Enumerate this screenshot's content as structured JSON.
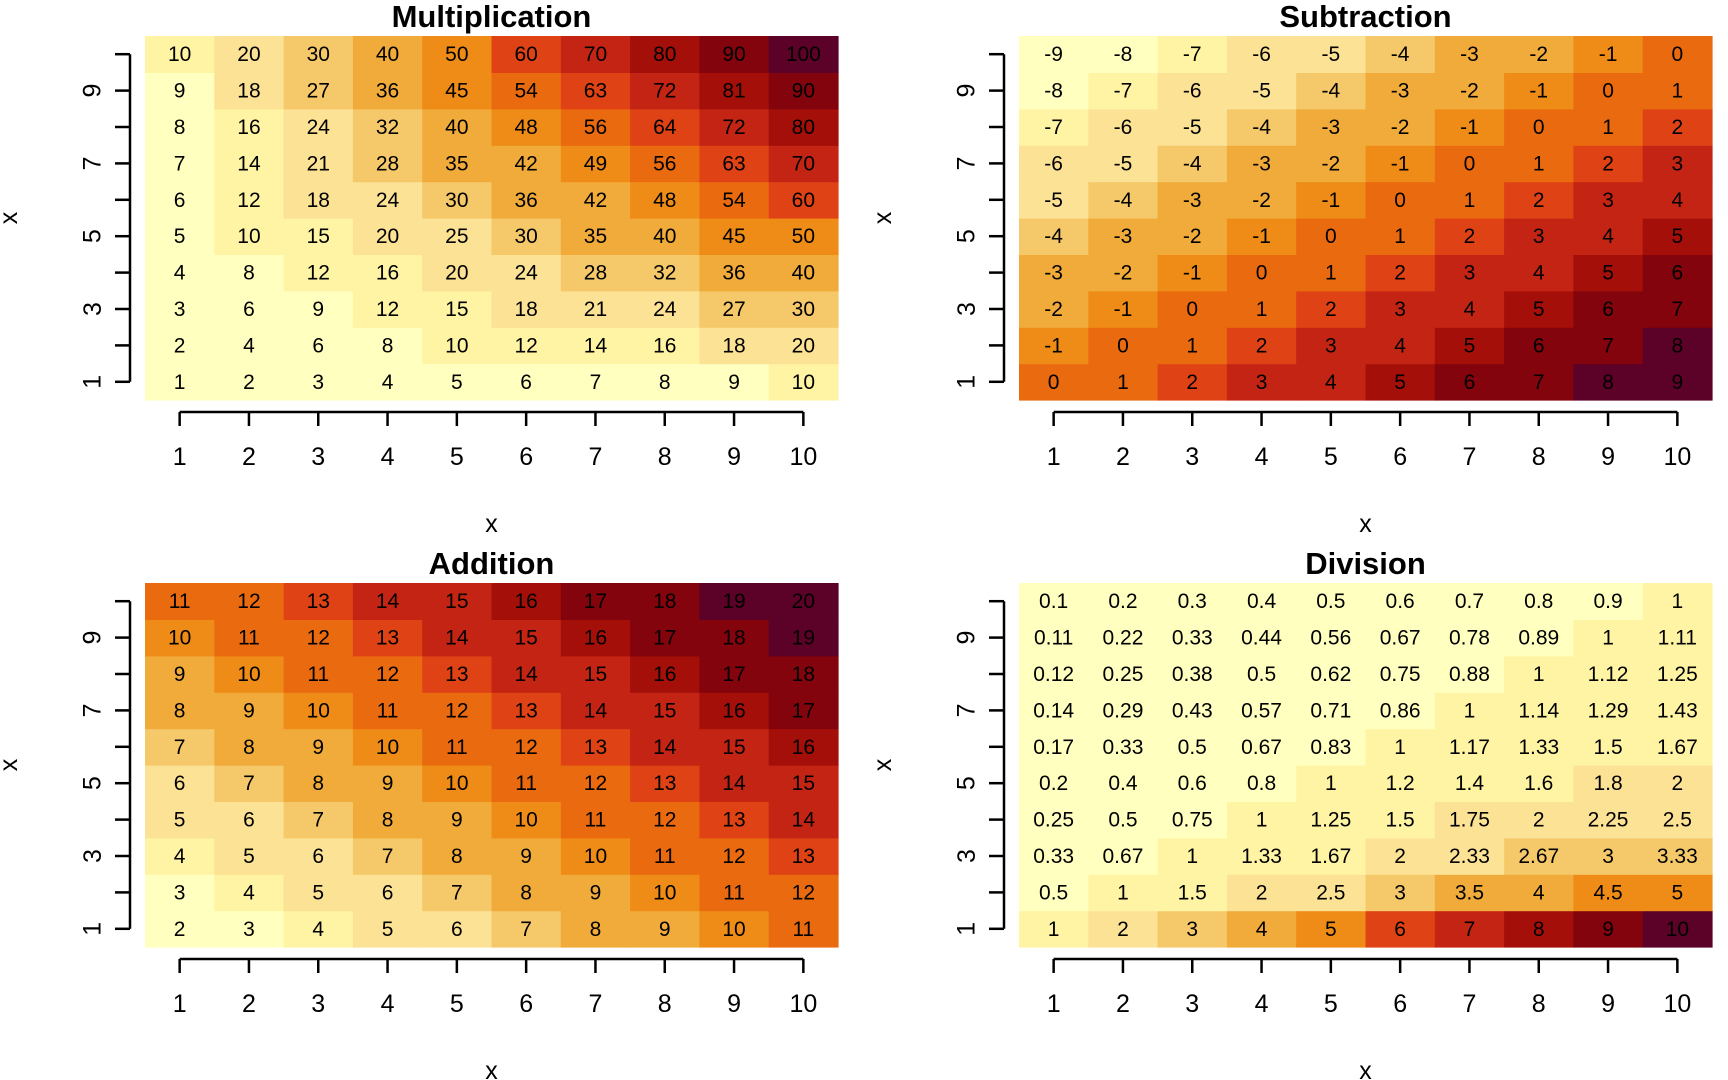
{
  "palette": [
    "#FFFFBF",
    "#FFF4A3",
    "#FCE294",
    "#F5C96A",
    "#F0AB3A",
    "#EE8C17",
    "#EA6A10",
    "#DF4214",
    "#C42413",
    "#A40F09",
    "#83040C",
    "#5C0127"
  ],
  "chart_data": [
    {
      "type": "heatmap",
      "title": "Multiplication",
      "xlabel": "x",
      "ylabel": "x",
      "x": [
        1,
        2,
        3,
        4,
        5,
        6,
        7,
        8,
        9,
        10
      ],
      "y": [
        1,
        2,
        3,
        4,
        5,
        6,
        7,
        8,
        9,
        10
      ],
      "x_ticks": [
        "1",
        "2",
        "3",
        "4",
        "5",
        "6",
        "7",
        "8",
        "9",
        "10"
      ],
      "y_ticks": [
        "1",
        "3",
        "5",
        "7",
        "9"
      ],
      "legend": "none",
      "grid": false,
      "color_scale": "heat (light yellow = low, dark red = high)",
      "labels": [
        [
          "1",
          "2",
          "3",
          "4",
          "5",
          "6",
          "7",
          "8",
          "9",
          "10"
        ],
        [
          "2",
          "4",
          "6",
          "8",
          "10",
          "12",
          "14",
          "16",
          "18",
          "20"
        ],
        [
          "3",
          "6",
          "9",
          "12",
          "15",
          "18",
          "21",
          "24",
          "27",
          "30"
        ],
        [
          "4",
          "8",
          "12",
          "16",
          "20",
          "24",
          "28",
          "32",
          "36",
          "40"
        ],
        [
          "5",
          "10",
          "15",
          "20",
          "25",
          "30",
          "35",
          "40",
          "45",
          "50"
        ],
        [
          "6",
          "12",
          "18",
          "24",
          "30",
          "36",
          "42",
          "48",
          "54",
          "60"
        ],
        [
          "7",
          "14",
          "21",
          "28",
          "35",
          "42",
          "49",
          "56",
          "63",
          "70"
        ],
        [
          "8",
          "16",
          "24",
          "32",
          "40",
          "48",
          "56",
          "64",
          "72",
          "80"
        ],
        [
          "9",
          "18",
          "27",
          "36",
          "45",
          "54",
          "63",
          "72",
          "81",
          "90"
        ],
        [
          "10",
          "20",
          "30",
          "40",
          "50",
          "60",
          "70",
          "80",
          "90",
          "100"
        ]
      ],
      "values": [
        [
          1,
          2,
          3,
          4,
          5,
          6,
          7,
          8,
          9,
          10
        ],
        [
          2,
          4,
          6,
          8,
          10,
          12,
          14,
          16,
          18,
          20
        ],
        [
          3,
          6,
          9,
          12,
          15,
          18,
          21,
          24,
          27,
          30
        ],
        [
          4,
          8,
          12,
          16,
          20,
          24,
          28,
          32,
          36,
          40
        ],
        [
          5,
          10,
          15,
          20,
          25,
          30,
          35,
          40,
          45,
          50
        ],
        [
          6,
          12,
          18,
          24,
          30,
          36,
          42,
          48,
          54,
          60
        ],
        [
          7,
          14,
          21,
          28,
          35,
          42,
          49,
          56,
          63,
          70
        ],
        [
          8,
          16,
          24,
          32,
          40,
          48,
          56,
          64,
          72,
          80
        ],
        [
          9,
          18,
          27,
          36,
          45,
          54,
          63,
          72,
          81,
          90
        ],
        [
          10,
          20,
          30,
          40,
          50,
          60,
          70,
          80,
          90,
          100
        ]
      ]
    },
    {
      "type": "heatmap",
      "title": "Subtraction",
      "xlabel": "x",
      "ylabel": "x",
      "x": [
        1,
        2,
        3,
        4,
        5,
        6,
        7,
        8,
        9,
        10
      ],
      "y": [
        1,
        2,
        3,
        4,
        5,
        6,
        7,
        8,
        9,
        10
      ],
      "x_ticks": [
        "1",
        "2",
        "3",
        "4",
        "5",
        "6",
        "7",
        "8",
        "9",
        "10"
      ],
      "y_ticks": [
        "1",
        "3",
        "5",
        "7",
        "9"
      ],
      "legend": "none",
      "grid": false,
      "color_scale": "heat (light yellow = low, dark red = high)",
      "labels": [
        [
          "0",
          "1",
          "2",
          "3",
          "4",
          "5",
          "6",
          "7",
          "8",
          "9"
        ],
        [
          "-1",
          "0",
          "1",
          "2",
          "3",
          "4",
          "5",
          "6",
          "7",
          "8"
        ],
        [
          "-2",
          "-1",
          "0",
          "1",
          "2",
          "3",
          "4",
          "5",
          "6",
          "7"
        ],
        [
          "-3",
          "-2",
          "-1",
          "0",
          "1",
          "2",
          "3",
          "4",
          "5",
          "6"
        ],
        [
          "-4",
          "-3",
          "-2",
          "-1",
          "0",
          "1",
          "2",
          "3",
          "4",
          "5"
        ],
        [
          "-5",
          "-4",
          "-3",
          "-2",
          "-1",
          "0",
          "1",
          "2",
          "3",
          "4"
        ],
        [
          "-6",
          "-5",
          "-4",
          "-3",
          "-2",
          "-1",
          "0",
          "1",
          "2",
          "3"
        ],
        [
          "-7",
          "-6",
          "-5",
          "-4",
          "-3",
          "-2",
          "-1",
          "0",
          "1",
          "2"
        ],
        [
          "-8",
          "-7",
          "-6",
          "-5",
          "-4",
          "-3",
          "-2",
          "-1",
          "0",
          "1"
        ],
        [
          "-9",
          "-8",
          "-7",
          "-6",
          "-5",
          "-4",
          "-3",
          "-2",
          "-1",
          "0"
        ]
      ],
      "values": [
        [
          0,
          1,
          2,
          3,
          4,
          5,
          6,
          7,
          8,
          9
        ],
        [
          -1,
          0,
          1,
          2,
          3,
          4,
          5,
          6,
          7,
          8
        ],
        [
          -2,
          -1,
          0,
          1,
          2,
          3,
          4,
          5,
          6,
          7
        ],
        [
          -3,
          -2,
          -1,
          0,
          1,
          2,
          3,
          4,
          5,
          6
        ],
        [
          -4,
          -3,
          -2,
          -1,
          0,
          1,
          2,
          3,
          4,
          5
        ],
        [
          -5,
          -4,
          -3,
          -2,
          -1,
          0,
          1,
          2,
          3,
          4
        ],
        [
          -6,
          -5,
          -4,
          -3,
          -2,
          -1,
          0,
          1,
          2,
          3
        ],
        [
          -7,
          -6,
          -5,
          -4,
          -3,
          -2,
          -1,
          0,
          1,
          2
        ],
        [
          -8,
          -7,
          -6,
          -5,
          -4,
          -3,
          -2,
          -1,
          0,
          1
        ],
        [
          -9,
          -8,
          -7,
          -6,
          -5,
          -4,
          -3,
          -2,
          -1,
          0
        ]
      ]
    },
    {
      "type": "heatmap",
      "title": "Addition",
      "xlabel": "x",
      "ylabel": "x",
      "x": [
        1,
        2,
        3,
        4,
        5,
        6,
        7,
        8,
        9,
        10
      ],
      "y": [
        1,
        2,
        3,
        4,
        5,
        6,
        7,
        8,
        9,
        10
      ],
      "x_ticks": [
        "1",
        "2",
        "3",
        "4",
        "5",
        "6",
        "7",
        "8",
        "9",
        "10"
      ],
      "y_ticks": [
        "1",
        "3",
        "5",
        "7",
        "9"
      ],
      "legend": "none",
      "grid": false,
      "color_scale": "heat (light yellow = low, dark red = high)",
      "labels": [
        [
          "2",
          "3",
          "4",
          "5",
          "6",
          "7",
          "8",
          "9",
          "10",
          "11"
        ],
        [
          "3",
          "4",
          "5",
          "6",
          "7",
          "8",
          "9",
          "10",
          "11",
          "12"
        ],
        [
          "4",
          "5",
          "6",
          "7",
          "8",
          "9",
          "10",
          "11",
          "12",
          "13"
        ],
        [
          "5",
          "6",
          "7",
          "8",
          "9",
          "10",
          "11",
          "12",
          "13",
          "14"
        ],
        [
          "6",
          "7",
          "8",
          "9",
          "10",
          "11",
          "12",
          "13",
          "14",
          "15"
        ],
        [
          "7",
          "8",
          "9",
          "10",
          "11",
          "12",
          "13",
          "14",
          "15",
          "16"
        ],
        [
          "8",
          "9",
          "10",
          "11",
          "12",
          "13",
          "14",
          "15",
          "16",
          "17"
        ],
        [
          "9",
          "10",
          "11",
          "12",
          "13",
          "14",
          "15",
          "16",
          "17",
          "18"
        ],
        [
          "10",
          "11",
          "12",
          "13",
          "14",
          "15",
          "16",
          "17",
          "18",
          "19"
        ],
        [
          "11",
          "12",
          "13",
          "14",
          "15",
          "16",
          "17",
          "18",
          "19",
          "20"
        ]
      ],
      "values": [
        [
          2,
          3,
          4,
          5,
          6,
          7,
          8,
          9,
          10,
          11
        ],
        [
          3,
          4,
          5,
          6,
          7,
          8,
          9,
          10,
          11,
          12
        ],
        [
          4,
          5,
          6,
          7,
          8,
          9,
          10,
          11,
          12,
          13
        ],
        [
          5,
          6,
          7,
          8,
          9,
          10,
          11,
          12,
          13,
          14
        ],
        [
          6,
          7,
          8,
          9,
          10,
          11,
          12,
          13,
          14,
          15
        ],
        [
          7,
          8,
          9,
          10,
          11,
          12,
          13,
          14,
          15,
          16
        ],
        [
          8,
          9,
          10,
          11,
          12,
          13,
          14,
          15,
          16,
          17
        ],
        [
          9,
          10,
          11,
          12,
          13,
          14,
          15,
          16,
          17,
          18
        ],
        [
          10,
          11,
          12,
          13,
          14,
          15,
          16,
          17,
          18,
          19
        ],
        [
          11,
          12,
          13,
          14,
          15,
          16,
          17,
          18,
          19,
          20
        ]
      ]
    },
    {
      "type": "heatmap",
      "title": "Division",
      "xlabel": "x",
      "ylabel": "x",
      "x": [
        1,
        2,
        3,
        4,
        5,
        6,
        7,
        8,
        9,
        10
      ],
      "y": [
        1,
        2,
        3,
        4,
        5,
        6,
        7,
        8,
        9,
        10
      ],
      "x_ticks": [
        "1",
        "2",
        "3",
        "4",
        "5",
        "6",
        "7",
        "8",
        "9",
        "10"
      ],
      "y_ticks": [
        "1",
        "3",
        "5",
        "7",
        "9"
      ],
      "legend": "none",
      "grid": false,
      "color_scale": "heat (light yellow = low, dark red = high)",
      "labels": [
        [
          "1",
          "2",
          "3",
          "4",
          "5",
          "6",
          "7",
          "8",
          "9",
          "10"
        ],
        [
          "0.5",
          "1",
          "1.5",
          "2",
          "2.5",
          "3",
          "3.5",
          "4",
          "4.5",
          "5"
        ],
        [
          "0.33",
          "0.67",
          "1",
          "1.33",
          "1.67",
          "2",
          "2.33",
          "2.67",
          "3",
          "3.33"
        ],
        [
          "0.25",
          "0.5",
          "0.75",
          "1",
          "1.25",
          "1.5",
          "1.75",
          "2",
          "2.25",
          "2.5"
        ],
        [
          "0.2",
          "0.4",
          "0.6",
          "0.8",
          "1",
          "1.2",
          "1.4",
          "1.6",
          "1.8",
          "2"
        ],
        [
          "0.17",
          "0.33",
          "0.5",
          "0.67",
          "0.83",
          "1",
          "1.17",
          "1.33",
          "1.5",
          "1.67"
        ],
        [
          "0.14",
          "0.29",
          "0.43",
          "0.57",
          "0.71",
          "0.86",
          "1",
          "1.14",
          "1.29",
          "1.43"
        ],
        [
          "0.12",
          "0.25",
          "0.38",
          "0.5",
          "0.62",
          "0.75",
          "0.88",
          "1",
          "1.12",
          "1.25"
        ],
        [
          "0.11",
          "0.22",
          "0.33",
          "0.44",
          "0.56",
          "0.67",
          "0.78",
          "0.89",
          "1",
          "1.11"
        ],
        [
          "0.1",
          "0.2",
          "0.3",
          "0.4",
          "0.5",
          "0.6",
          "0.7",
          "0.8",
          "0.9",
          "1"
        ]
      ],
      "values": [
        [
          1,
          2,
          3,
          4,
          5,
          6,
          7,
          8,
          9,
          10
        ],
        [
          0.5,
          1,
          1.5,
          2,
          2.5,
          3,
          3.5,
          4,
          4.5,
          5
        ],
        [
          0.33,
          0.67,
          1,
          1.33,
          1.67,
          2,
          2.33,
          2.67,
          3,
          3.33
        ],
        [
          0.25,
          0.5,
          0.75,
          1,
          1.25,
          1.5,
          1.75,
          2,
          2.25,
          2.5
        ],
        [
          0.2,
          0.4,
          0.6,
          0.8,
          1,
          1.2,
          1.4,
          1.6,
          1.8,
          2
        ],
        [
          0.17,
          0.33,
          0.5,
          0.67,
          0.83,
          1,
          1.17,
          1.33,
          1.5,
          1.67
        ],
        [
          0.14,
          0.29,
          0.43,
          0.57,
          0.71,
          0.86,
          1,
          1.14,
          1.29,
          1.43
        ],
        [
          0.12,
          0.25,
          0.38,
          0.5,
          0.62,
          0.75,
          0.88,
          1,
          1.12,
          1.25
        ],
        [
          0.11,
          0.22,
          0.33,
          0.44,
          0.56,
          0.67,
          0.78,
          0.89,
          1,
          1.11
        ],
        [
          0.1,
          0.2,
          0.3,
          0.4,
          0.5,
          0.6,
          0.7,
          0.8,
          0.9,
          1
        ]
      ]
    }
  ]
}
